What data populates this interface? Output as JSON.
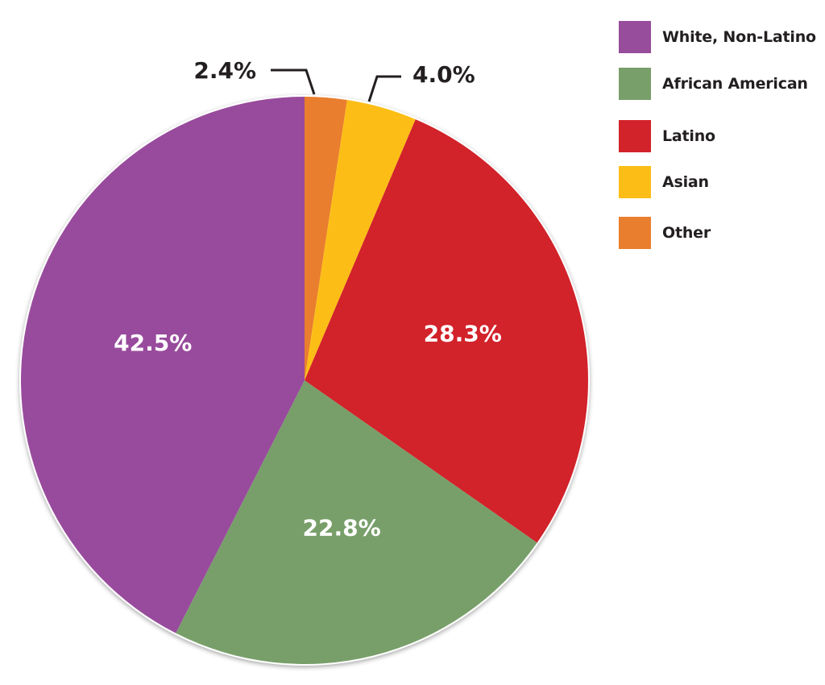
{
  "chart_data": {
    "type": "pie",
    "slices": [
      {
        "label": "Other",
        "value": 2.4,
        "display": "2.4%",
        "color": "#e97e2e"
      },
      {
        "label": "Asian",
        "value": 4.0,
        "display": "4.0%",
        "color": "#fcbe16"
      },
      {
        "label": "Latino",
        "value": 28.3,
        "display": "28.3%",
        "color": "#d2232a"
      },
      {
        "label": "African American",
        "value": 22.8,
        "display": "22.8%",
        "color": "#789f6a"
      },
      {
        "label": "White, Non-Latino",
        "value": 42.5,
        "display": "42.5%",
        "color": "#984c9c"
      }
    ],
    "start_angle": "12 o'clock",
    "direction": "clockwise",
    "legend_position": "top-right",
    "legend": [
      {
        "label": "White, Non-Latino",
        "color": "#984c9c"
      },
      {
        "label": "African American",
        "color": "#789f6a"
      },
      {
        "label": "Latino",
        "color": "#d2232a"
      },
      {
        "label": "Asian",
        "color": "#fcbe16"
      },
      {
        "label": "Other",
        "color": "#e97e2e"
      }
    ]
  }
}
